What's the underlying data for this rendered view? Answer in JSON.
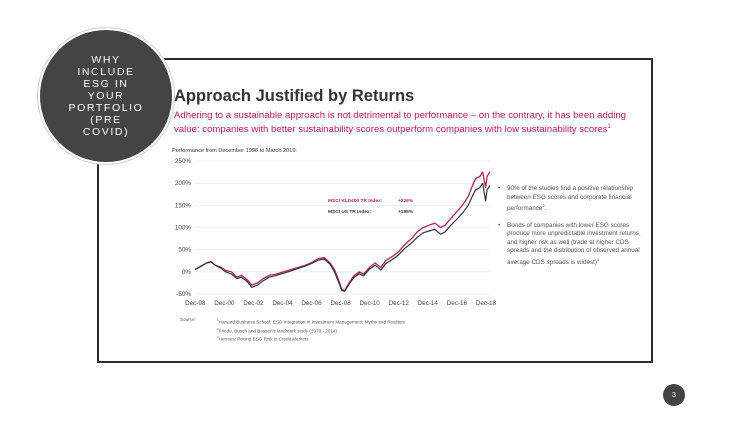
{
  "circle": {
    "text": "WHY\nINCLUDE\nESG IN\nYOUR\nPORTFOLIO\n(PRE\nCOVID)"
  },
  "slide": {
    "title": "Approach Justified by Returns",
    "lead": "Adhering to a sustainable approach is not detrimental to performance – on the contrary, it has been adding value: companies with better sustainability scores outperform companies with low sustainability scores",
    "lead_sup": "1",
    "perf_caption": "Performance from December 1998 to March 2019:"
  },
  "chart_data": {
    "type": "line",
    "x_ticks": [
      "Dec-98",
      "Dec-00",
      "Dec-02",
      "Dec-04",
      "Dec-06",
      "Dec-08",
      "Dec-10",
      "Dec-12",
      "Dec-14",
      "Dec-16",
      "Dec-18"
    ],
    "y_ticks": [
      "250%",
      "200%",
      "150%",
      "100%",
      "50%",
      "0%",
      "-50%"
    ],
    "ylim": [
      -50,
      250
    ],
    "grid": true,
    "legend_position": "upper-middle",
    "series": [
      {
        "name": "MSCI KLD400 TR Index:",
        "end_label": "+226%",
        "color": "#b0245a",
        "x": [
          1998.9,
          1999.3,
          1999.7,
          2000.0,
          2000.3,
          2000.7,
          2001.0,
          2001.4,
          2001.8,
          2002.1,
          2002.5,
          2002.8,
          2003.2,
          2003.6,
          2004.0,
          2004.5,
          2005.0,
          2005.5,
          2006.0,
          2006.5,
          2007.0,
          2007.4,
          2007.8,
          2008.2,
          2008.5,
          2008.8,
          2009.0,
          2009.2,
          2009.5,
          2009.8,
          2010.2,
          2010.5,
          2010.9,
          2011.3,
          2011.7,
          2012.0,
          2012.5,
          2012.9,
          2013.3,
          2013.8,
          2014.2,
          2014.6,
          2015.0,
          2015.4,
          2015.8,
          2016.1,
          2016.5,
          2016.9,
          2017.3,
          2017.7,
          2018.0,
          2018.2,
          2018.5,
          2018.7,
          2018.9,
          2019.0,
          2019.2
        ],
        "y": [
          5,
          12,
          20,
          22,
          15,
          10,
          3,
          0,
          -12,
          -8,
          -18,
          -30,
          -25,
          -15,
          -8,
          -5,
          0,
          5,
          10,
          15,
          22,
          30,
          32,
          20,
          5,
          -20,
          -40,
          -42,
          -25,
          -10,
          0,
          -5,
          10,
          20,
          10,
          25,
          35,
          45,
          60,
          75,
          90,
          100,
          105,
          110,
          100,
          105,
          120,
          135,
          150,
          170,
          195,
          210,
          215,
          225,
          190,
          215,
          226
        ]
      },
      {
        "name": "MSCI US TR Index:",
        "end_label": "+195%",
        "color": "#333333",
        "x": [
          1998.9,
          1999.3,
          1999.7,
          2000.0,
          2000.3,
          2000.7,
          2001.0,
          2001.4,
          2001.8,
          2002.1,
          2002.5,
          2002.8,
          2003.2,
          2003.6,
          2004.0,
          2004.5,
          2005.0,
          2005.5,
          2006.0,
          2006.5,
          2007.0,
          2007.4,
          2007.8,
          2008.2,
          2008.5,
          2008.8,
          2009.0,
          2009.2,
          2009.5,
          2009.8,
          2010.2,
          2010.5,
          2010.9,
          2011.3,
          2011.7,
          2012.0,
          2012.5,
          2012.9,
          2013.3,
          2013.8,
          2014.2,
          2014.6,
          2015.0,
          2015.4,
          2015.8,
          2016.1,
          2016.5,
          2016.9,
          2017.3,
          2017.7,
          2018.0,
          2018.2,
          2018.5,
          2018.7,
          2018.9,
          2019.0,
          2019.2
        ],
        "y": [
          5,
          13,
          20,
          23,
          15,
          8,
          0,
          -5,
          -15,
          -12,
          -22,
          -35,
          -30,
          -20,
          -12,
          -8,
          -3,
          2,
          8,
          13,
          20,
          27,
          29,
          17,
          0,
          -25,
          -42,
          -44,
          -28,
          -14,
          -4,
          -9,
          6,
          15,
          4,
          18,
          28,
          38,
          52,
          65,
          78,
          88,
          92,
          96,
          85,
          90,
          105,
          118,
          132,
          150,
          172,
          185,
          190,
          200,
          160,
          185,
          195
        ]
      }
    ]
  },
  "bullets": [
    {
      "text": "90% of the studies find a positive relationship between ESG scores and corporate financial performance",
      "sup": "2",
      "tail": "."
    },
    {
      "text": "Bonds of companies with lower ESG scores produce more unpredictable investment returns, and higher risk as well (trade at higher CDS spreads and the distribution of observed annual average CDS spreads is widest)",
      "sup": "3",
      "tail": ""
    }
  ],
  "footnotes": {
    "source_label": "Source:",
    "items": [
      {
        "sup": "1",
        "text": "Harvard Business School: ESG Integration in Investment Management: Myths and Realities"
      },
      {
        "sup": "2",
        "text": "Friede, Busch and Bassen's landmark study (1970 - 2014)"
      },
      {
        "sup": "3",
        "text": "Hermes: Pricing ESG Risk in Credit Markets"
      }
    ]
  },
  "page_number": "3"
}
